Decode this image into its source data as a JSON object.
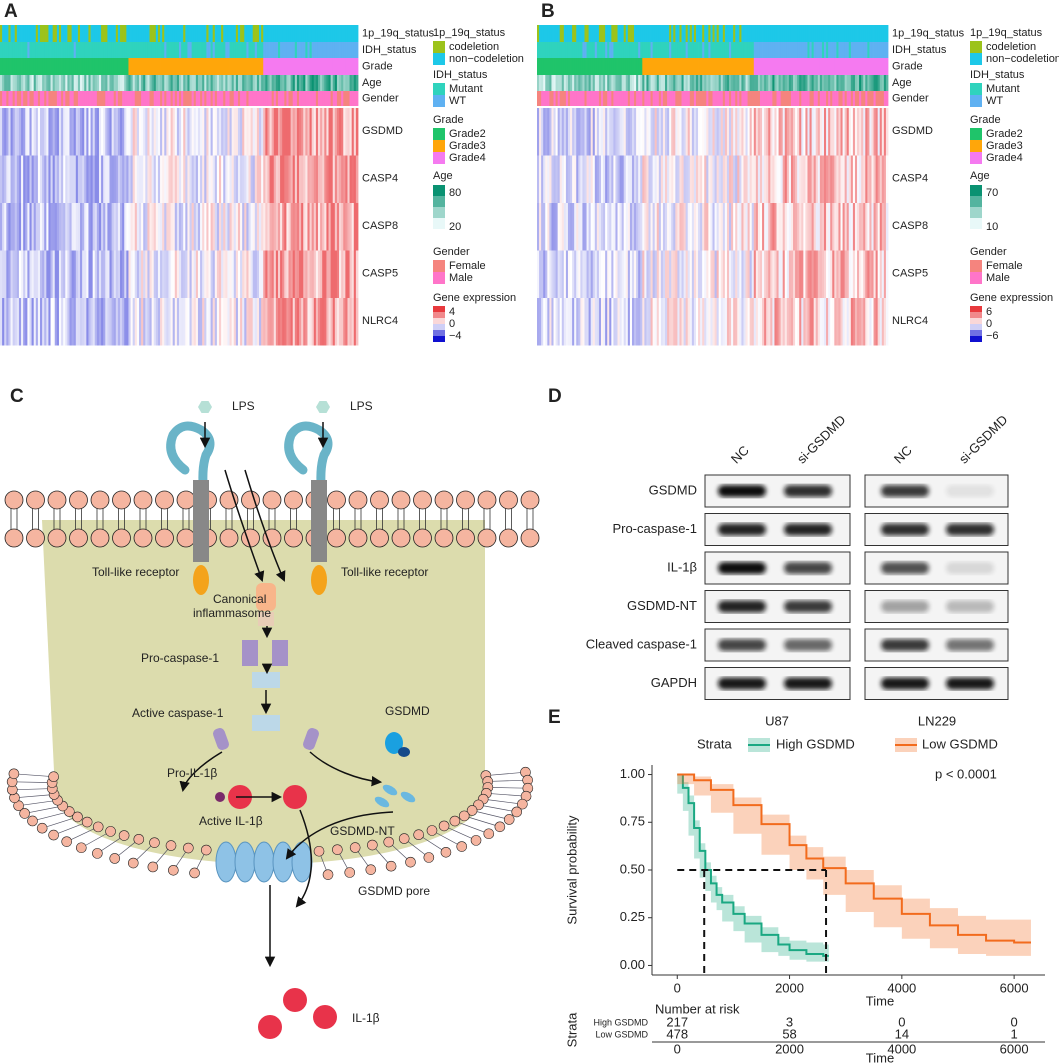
{
  "panel_labels": [
    "A",
    "B",
    "C",
    "D",
    "E"
  ],
  "heatmaps": [
    {
      "tracks": [
        "1p_19q_status",
        "IDH_status",
        "Grade",
        "Age",
        "Gender"
      ],
      "genes": [
        "GSDMD",
        "CASP4",
        "CASP8",
        "CASP5",
        "NLRC4"
      ],
      "legend": [
        {
          "title": "1p_19q_status",
          "items": [
            "codeletion",
            "non−codeletion"
          ]
        },
        {
          "title": "IDH_status",
          "items": [
            "Mutant",
            "WT"
          ]
        },
        {
          "title": "Grade",
          "items": [
            "Grade2",
            "Grade3",
            "Grade4"
          ]
        },
        {
          "title": "Age",
          "items": [
            "80",
            "20"
          ]
        },
        {
          "title": "Gender",
          "items": [
            "Female",
            "Male"
          ]
        },
        {
          "title": "Gene expression",
          "items": [
            "4",
            "0",
            "−4"
          ]
        }
      ]
    },
    {
      "tracks": [
        "1p_19q_status",
        "IDH_status",
        "Grade",
        "Age",
        "Gender"
      ],
      "genes": [
        "GSDMD",
        "CASP4",
        "CASP8",
        "CASP5",
        "NLRC4"
      ],
      "legend": [
        {
          "title": "1p_19q_status",
          "items": [
            "codeletion",
            "non−codeletion"
          ]
        },
        {
          "title": "IDH_status",
          "items": [
            "Mutant",
            "WT"
          ]
        },
        {
          "title": "Grade",
          "items": [
            "Grade2",
            "Grade3",
            "Grade4"
          ]
        },
        {
          "title": "Age",
          "items": [
            "70",
            "10"
          ]
        },
        {
          "title": "Gender",
          "items": [
            "Female",
            "Male"
          ]
        },
        {
          "title": "Gene expression",
          "items": [
            "6",
            "0",
            "−6"
          ]
        }
      ]
    }
  ],
  "pathway": {
    "labels": [
      "LPS",
      "LPS",
      "Toll-like receptor",
      "Toll-like receptor",
      "Canonical",
      "inflammasome",
      "Pro-caspase-1",
      "Active caspase-1",
      "GSDMD",
      "Pro-IL-1β",
      "Active IL-1β",
      "GSDMD-NT",
      "GSDMD pore",
      "IL-1β"
    ]
  },
  "blot": {
    "columns": [
      "NC",
      "si-GSDMD",
      "NC",
      "si-GSDMD"
    ],
    "rows": [
      "GSDMD",
      "Pro-caspase-1",
      "IL-1β",
      "GSDMD-NT",
      "Cleaved caspase-1",
      "GAPDH"
    ],
    "cell_lines": [
      "U87",
      "LN229"
    ]
  },
  "survival": {
    "legend_title": "Strata",
    "xlim": [
      -450,
      6550
    ],
    "ylim": [
      -0.05,
      1.05
    ],
    "xticks": [
      0,
      2000,
      4000,
      6000
    ],
    "yticks": [
      {
        "value": 0,
        "label": "0.00"
      },
      {
        "value": 0.25,
        "label": "0.25"
      },
      {
        "value": 0.5,
        "label": "0.50"
      },
      {
        "value": 0.75,
        "label": "0.75"
      },
      {
        "value": 1,
        "label": "1.00"
      }
    ],
    "xlabel": "Time",
    "ylabel": "Survival probability",
    "annotation": "p < 0.0001",
    "median_y": 0.5,
    "median_x": [
      480,
      2650
    ],
    "series": [
      {
        "name": "High GSDMD",
        "color": "#1aa882",
        "x": [
          0,
          100,
          200,
          300,
          400,
          500,
          600,
          700,
          800,
          1000,
          1200,
          1500,
          1800,
          2000,
          2300,
          2600,
          2700
        ],
        "values": [
          1,
          0.93,
          0.85,
          0.72,
          0.6,
          0.5,
          0.43,
          0.37,
          0.33,
          0.27,
          0.22,
          0.16,
          0.11,
          0.08,
          0.06,
          0.05,
          0.05
        ],
        "lower": [
          1,
          0.9,
          0.81,
          0.68,
          0.56,
          0.46,
          0.39,
          0.33,
          0.29,
          0.23,
          0.18,
          0.12,
          0.07,
          0.05,
          0.03,
          0.02,
          0.02
        ],
        "upper": [
          1,
          0.96,
          0.89,
          0.76,
          0.64,
          0.54,
          0.47,
          0.41,
          0.37,
          0.31,
          0.26,
          0.2,
          0.15,
          0.13,
          0.12,
          0.11,
          0.11
        ]
      },
      {
        "name": "Low GSDMD",
        "color": "#f26b1d",
        "x": [
          0,
          300,
          600,
          1000,
          1500,
          2000,
          2300,
          2600,
          3000,
          3500,
          4000,
          4500,
          5000,
          5500,
          6000,
          6300
        ],
        "values": [
          1,
          0.97,
          0.92,
          0.84,
          0.74,
          0.63,
          0.56,
          0.51,
          0.43,
          0.35,
          0.27,
          0.21,
          0.16,
          0.13,
          0.12,
          0.12
        ],
        "lower": [
          1,
          0.95,
          0.89,
          0.8,
          0.69,
          0.58,
          0.5,
          0.45,
          0.37,
          0.28,
          0.2,
          0.14,
          0.09,
          0.06,
          0.05,
          0.05
        ],
        "upper": [
          1,
          0.99,
          0.95,
          0.88,
          0.79,
          0.68,
          0.62,
          0.57,
          0.5,
          0.42,
          0.35,
          0.3,
          0.26,
          0.24,
          0.24,
          0.24
        ]
      }
    ],
    "risk_table": {
      "title": "Number at risk",
      "ylabel": "Strata",
      "rows": [
        [
          217,
          3,
          0,
          0
        ],
        [
          478,
          58,
          14,
          1
        ]
      ]
    }
  }
}
